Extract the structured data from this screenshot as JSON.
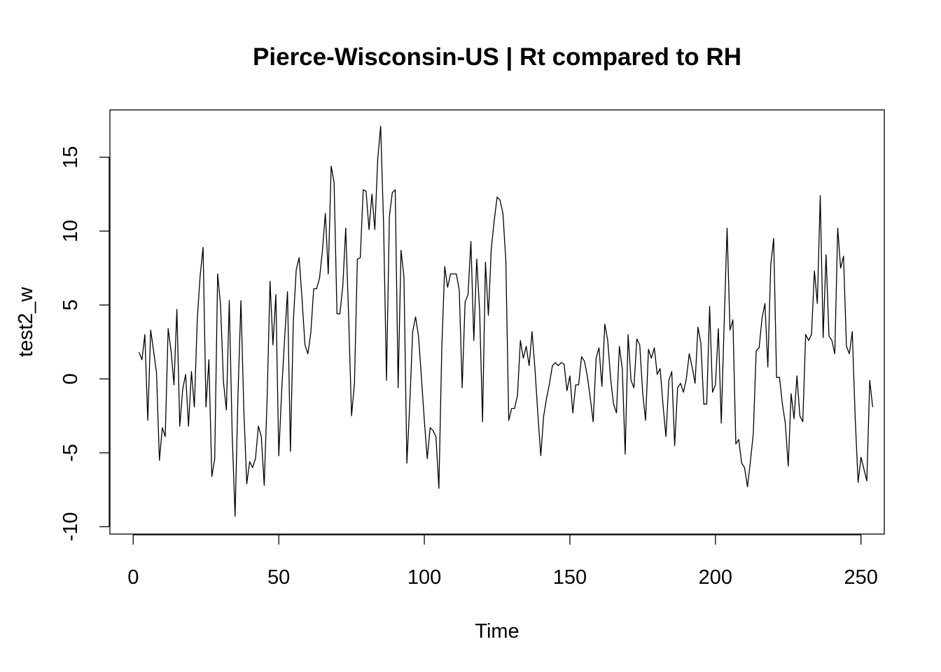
{
  "chart_data": {
    "type": "line",
    "title": "Pierce-Wisconsin-US | Rt compared to RH",
    "xlabel": "Time",
    "ylabel": "test2_w",
    "xlim": [
      -8,
      258
    ],
    "ylim": [
      -10.5,
      18.2
    ],
    "xticks": [
      0,
      50,
      100,
      150,
      200,
      250
    ],
    "yticks": [
      -10,
      -5,
      0,
      5,
      10,
      15
    ],
    "xtick_labels": [
      "0",
      "50",
      "100",
      "150",
      "200",
      "250"
    ],
    "ytick_labels": [
      "-10",
      "-5",
      "0",
      "5",
      "10",
      "15"
    ],
    "grid": false,
    "line_color": "#000000",
    "series": [
      {
        "x_start": 2,
        "values": [
          1.8,
          1.3,
          3.0,
          -2.8,
          3.3,
          1.9,
          0.4,
          -5.5,
          -3.3,
          -3.9,
          3.4,
          1.9,
          -0.4,
          4.7,
          -3.2,
          -0.7,
          0.3,
          -3.2,
          0.5,
          -1.9,
          4.0,
          7.0,
          8.9,
          -1.9,
          1.3,
          -6.6,
          -5.4,
          7.1,
          5.0,
          -0.2,
          -2.1,
          5.3,
          -3.8,
          -9.3,
          -1.0,
          5.3,
          -2.1,
          -7.1,
          -5.6,
          -6.0,
          -5.4,
          -3.2,
          -3.9,
          -7.2,
          -1.3,
          6.6,
          2.3,
          5.7,
          -5.2,
          -0.8,
          2.7,
          5.9,
          -4.9,
          3.9,
          7.4,
          8.2,
          5.4,
          2.3,
          1.7,
          3.1,
          6.1,
          6.1,
          6.8,
          8.7,
          11.2,
          7.1,
          14.4,
          13.3,
          4.4,
          4.4,
          6.3,
          10.2,
          4.2,
          -2.5,
          -0.3,
          8.1,
          8.2,
          12.8,
          12.7,
          10.1,
          12.5,
          10.1,
          14.9,
          17.1,
          10.5,
          -0.1,
          11.0,
          12.6,
          12.8,
          -0.6,
          8.7,
          6.9,
          -5.7,
          -1.7,
          3.2,
          4.2,
          2.9,
          0.1,
          -2.8,
          -5.4,
          -3.3,
          -3.5,
          -3.9,
          -7.4,
          2.1,
          7.6,
          6.2,
          7.1,
          7.1,
          7.1,
          6.0,
          -0.6,
          5.2,
          5.7,
          9.3,
          2.6,
          8.1,
          4.6,
          -2.9,
          7.9,
          4.3,
          8.8,
          10.7,
          12.3,
          12.1,
          11.2,
          8.0,
          -2.8,
          -2.0,
          -2.0,
          -1.1,
          2.6,
          1.4,
          2.2,
          0.9,
          3.2,
          0.7,
          -2.4,
          -5.2,
          -2.5,
          -1.3,
          -0.3,
          0.9,
          1.1,
          0.9,
          1.1,
          1.0,
          -0.8,
          0.2,
          -2.3,
          -0.4,
          -0.4,
          1.5,
          1.2,
          0.2,
          -1.3,
          -2.9,
          1.4,
          2.1,
          -0.5,
          3.7,
          2.6,
          0.0,
          -1.7,
          -2.3,
          2.2,
          0.7,
          -5.1,
          3.0,
          -0.1,
          -0.6,
          2.7,
          2.3,
          -0.9,
          -2.8,
          2.0,
          1.4,
          2.1,
          0.3,
          0.7,
          -1.8,
          -3.9,
          -0.1,
          0.5,
          -4.5,
          -0.6,
          -0.3,
          -0.9,
          0.0,
          1.7,
          0.8,
          -0.3,
          3.5,
          2.4,
          -1.7,
          -1.7,
          4.9,
          -0.9,
          -0.4,
          3.4,
          -3.0,
          3.8,
          10.2,
          3.3,
          4.0,
          -4.4,
          -4.1,
          -5.7,
          -6.0,
          -7.3,
          -5.6,
          -3.7,
          1.9,
          2.1,
          4.1,
          5.1,
          0.8,
          7.7,
          9.5,
          0.1,
          0.1,
          -1.7,
          -3.0,
          -5.9,
          -1.0,
          -2.7,
          0.2,
          -2.5,
          -2.9,
          3.0,
          2.6,
          3.0,
          7.3,
          5.1,
          12.4,
          2.8,
          8.4,
          2.9,
          2.6,
          1.7,
          10.2,
          7.5,
          8.3,
          2.2,
          1.7,
          3.2,
          -2.6,
          -7.0,
          -5.3,
          -6.1,
          -6.9,
          -0.1,
          -1.9
        ]
      }
    ]
  }
}
